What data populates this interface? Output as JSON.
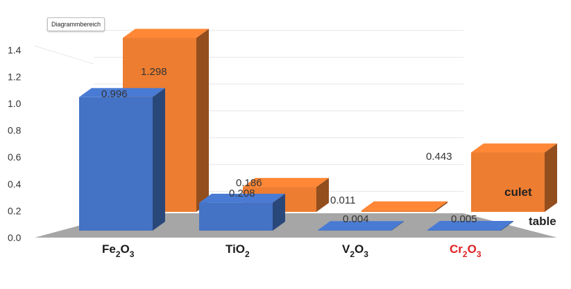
{
  "tooltip": "Diagrammbereich",
  "chart_data": {
    "type": "bar",
    "categories": [
      {
        "base": "Fe",
        "sub1": "2",
        "mid": "O",
        "sub2": "3"
      },
      {
        "base": "TiO",
        "sub1": "2",
        "mid": "",
        "sub2": ""
      },
      {
        "base": "V",
        "sub1": "2",
        "mid": "O",
        "sub2": "3"
      },
      {
        "base": "Cr",
        "sub1": "2",
        "mid": "O",
        "sub2": "3"
      }
    ],
    "category_colors": [
      "#1a1a1a",
      "#1a1a1a",
      "#1a1a1a",
      "#e02020"
    ],
    "series": [
      {
        "name": "table",
        "values": [
          0.996,
          0.208,
          0.004,
          0.005
        ],
        "color": "#4472c4"
      },
      {
        "name": "culet",
        "values": [
          1.298,
          0.186,
          0.011,
          0.443
        ],
        "color": "#ed7d31"
      }
    ],
    "value_labels": {
      "table": [
        "0.996",
        "0.208",
        "0.004",
        "0.005"
      ],
      "culet": [
        "1.298",
        "0.186",
        "0.011",
        "0.443"
      ]
    },
    "y_ticks": [
      "0.0",
      "0.2",
      "0.4",
      "0.6",
      "0.8",
      "1.0",
      "1.2",
      "1.4"
    ],
    "ylim": [
      0,
      1.4
    ],
    "grid": true,
    "title": "",
    "xlabel": "",
    "ylabel": ""
  }
}
